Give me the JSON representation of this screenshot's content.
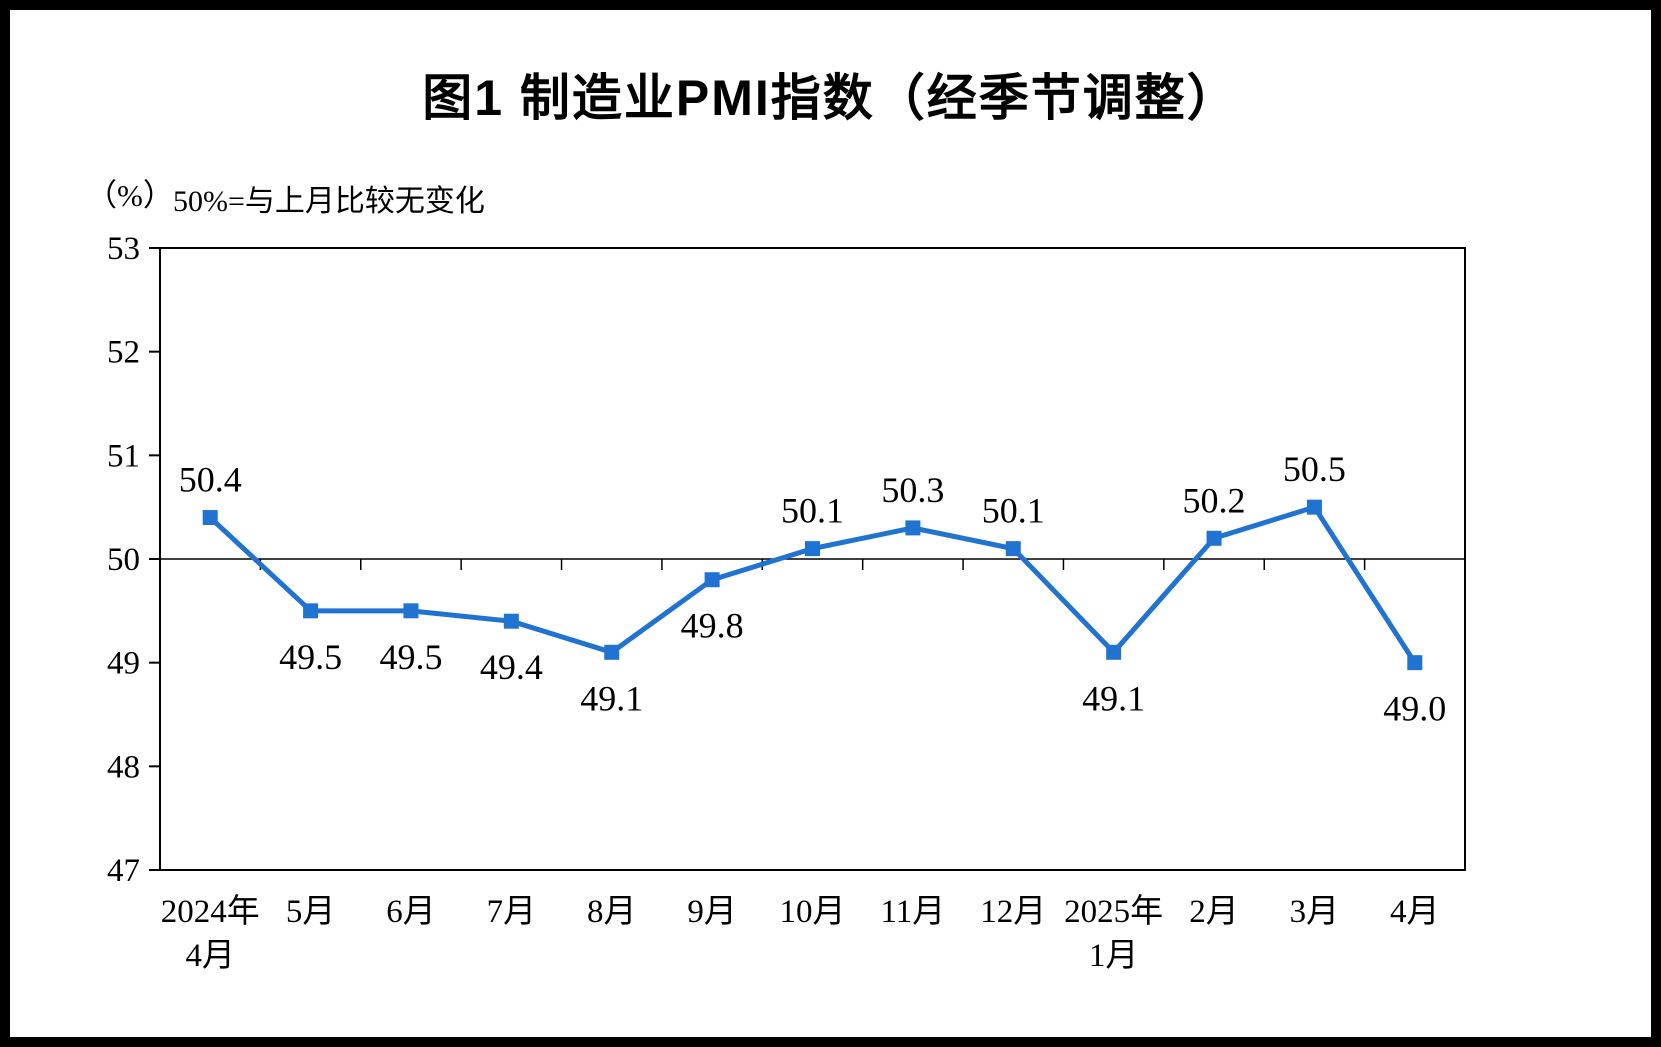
{
  "header": {
    "title": "图1  制造业PMI指数（经季节调整）",
    "unit_label": "（%）",
    "subtitle": "50%=与上月比较无变化"
  },
  "chart_data": {
    "type": "line",
    "title": "图1  制造业PMI指数（经季节调整）",
    "unit_label": "（%）",
    "subtitle": "50%=与上月比较无变化",
    "categories": [
      [
        "2024年",
        "4月"
      ],
      [
        "5月"
      ],
      [
        "6月"
      ],
      [
        "7月"
      ],
      [
        "8月"
      ],
      [
        "9月"
      ],
      [
        "10月"
      ],
      [
        "11月"
      ],
      [
        "12月"
      ],
      [
        "2025年",
        "1月"
      ],
      [
        "2月"
      ],
      [
        "3月"
      ],
      [
        "4月"
      ]
    ],
    "values": [
      50.4,
      49.5,
      49.5,
      49.4,
      49.1,
      49.8,
      50.1,
      50.3,
      50.1,
      49.1,
      50.2,
      50.5,
      49.0
    ],
    "ylim": [
      47,
      53
    ],
    "yticks": [
      47,
      48,
      49,
      50,
      51,
      52,
      53
    ],
    "reference_line": 50,
    "line_color": "#2173D2",
    "marker": "square",
    "marker_color": "#2173D2",
    "axis_color": "#000000",
    "grid": "off",
    "legend": "none",
    "label_decimals": 1
  }
}
